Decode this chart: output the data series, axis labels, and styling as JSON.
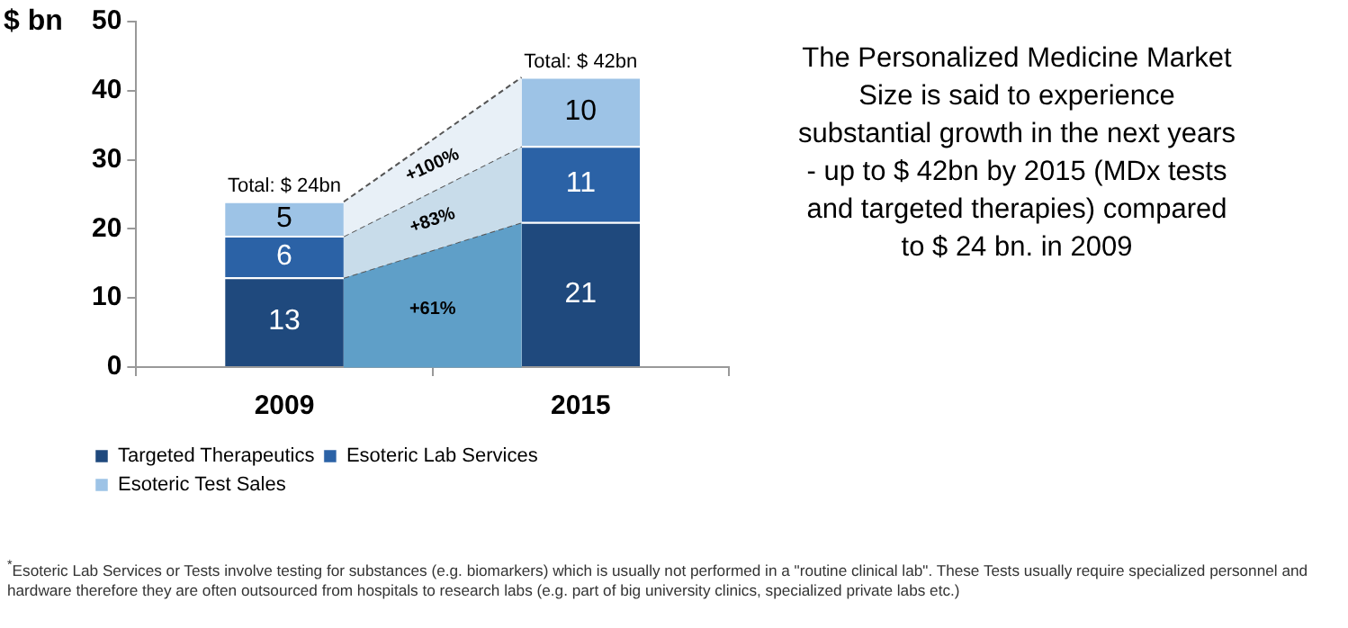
{
  "chart_data": {
    "type": "bar",
    "stacked": true,
    "ylabel": "$ bn",
    "categories": [
      "2009",
      "2015"
    ],
    "series": [
      {
        "name": "Targeted Therapeutics",
        "color": "#1f497d",
        "values": [
          13,
          21
        ]
      },
      {
        "name": "Esoteric Lab Services",
        "color": "#2b62a6",
        "values": [
          6,
          11
        ]
      },
      {
        "name": "Esoteric Test Sales",
        "color": "#9dc3e6",
        "values": [
          5,
          10
        ]
      }
    ],
    "ylim": [
      0,
      50
    ],
    "yticks": [
      0,
      10,
      20,
      30,
      40,
      50
    ],
    "grid": false,
    "legend": "bottom",
    "data_labels": true,
    "totals": [
      "Total: $ 24bn",
      "Total: $ 42bn"
    ],
    "annotations": [
      "+61%",
      "+83%",
      "+100%",
      "The Personalized Medicine Market Size is said to experience substantial growth in the next years - up to  $ 42bn by 2015 (MDx tests and targeted therapies) compared to $ 24 bn. in 2009",
      "$^{*}$Esoteric Lab Services or Tests involve testing for substances (e.g. biomarkers) which is usually not performed in a \"routine clinical lab\". These Tests usually require specialized personnel and hardware therefore they are often outsourced from hospitals to research labs (e.g. part of big university clinics, specialized private labs etc.)"
    ]
  }
}
